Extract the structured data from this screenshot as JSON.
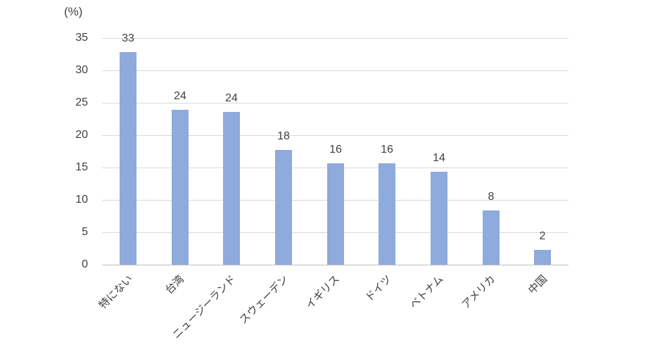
{
  "chart_data": {
    "type": "bar",
    "title": "",
    "unit_label": "(%)",
    "categories": [
      "特にない",
      "台湾",
      "ニュージーランド",
      "スウェーデン",
      "イギリス",
      "ドイツ",
      "ベトナム",
      "アメリカ",
      "中国"
    ],
    "values": [
      33,
      24,
      24,
      18,
      16,
      16,
      14,
      8,
      2
    ],
    "bar_heights_precise": [
      32.8,
      23.9,
      23.6,
      17.7,
      15.6,
      15.6,
      14.4,
      8.4,
      2.3
    ],
    "xlabel": "",
    "ylabel": "(%)",
    "ylim": [
      0,
      35
    ],
    "yticks": [
      0,
      5,
      10,
      15,
      20,
      25,
      30,
      35
    ],
    "grid": true,
    "legend_position": "none",
    "bar_color": "#8FAADC",
    "gridline_color": "#D9D9D9",
    "axis_line_color": "#BFBFBF",
    "label_color": "#404040",
    "background_color": "#FFFFFF"
  }
}
